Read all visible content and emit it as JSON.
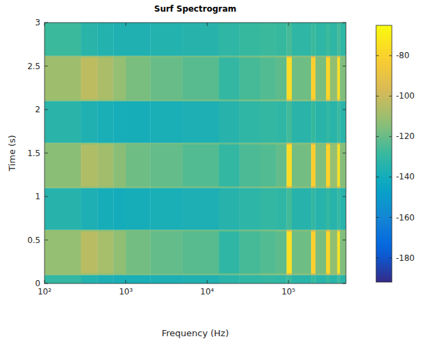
{
  "chart_data": {
    "type": "heatmap",
    "title": "Surf Spectrogram",
    "x_label": "Frequency (Hz)",
    "y_label": "Time (s)",
    "log": "x",
    "xlim": [
      100,
      510000
    ],
    "xticks": [
      {
        "value": 100,
        "label": "10²"
      },
      {
        "value": 1000,
        "label": "10³"
      },
      {
        "value": 10000,
        "label": "10⁴"
      },
      {
        "value": 100000,
        "label": "10⁵"
      }
    ],
    "ylim": [
      0,
      3
    ],
    "yticks": [
      0,
      0.5,
      1,
      1.5,
      2,
      2.5,
      3
    ],
    "x_edges": [
      100,
      280,
      450,
      700,
      1000,
      2000,
      5000,
      14000,
      25000,
      45000,
      70000,
      95000,
      110000,
      190000,
      215000,
      290000,
      325000,
      380000,
      400000,
      430000,
      510000
    ],
    "y_edges": [
      0,
      0.1,
      0.12,
      0.6,
      0.62,
      1.1,
      1.12,
      1.6,
      1.62,
      2.1,
      2.12,
      2.6,
      2.62,
      3
    ],
    "cells": [
      [
        -130,
        -135,
        -137,
        -138,
        -138,
        -137,
        -136,
        -133,
        -131,
        -130,
        -131,
        -128,
        -133,
        -129,
        -133,
        -129,
        -133,
        -133,
        -128,
        -133
      ],
      [
        -112,
        -110,
        -112,
        -114,
        -116,
        -118,
        -118,
        -120,
        -118,
        -116,
        -115,
        -95,
        -114,
        -98,
        -114,
        -96,
        -112,
        -112,
        -94,
        -114
      ],
      [
        -112,
        -104,
        -108,
        -113,
        -118,
        -121,
        -123,
        -131,
        -126,
        -124,
        -122,
        -75,
        -119,
        -80,
        -117,
        -78,
        -113,
        -111,
        -73,
        -116
      ],
      [
        -113,
        -111,
        -113,
        -115,
        -117,
        -118,
        -119,
        -121,
        -118,
        -117,
        -116,
        -96,
        -115,
        -99,
        -115,
        -97,
        -113,
        -113,
        -95,
        -115
      ],
      [
        -134,
        -137,
        -139,
        -140,
        -139,
        -138,
        -137,
        -134,
        -132,
        -130,
        -131,
        -127,
        -134,
        -130,
        -134,
        -130,
        -134,
        -134,
        -129,
        -134
      ],
      [
        -112,
        -110,
        -112,
        -114,
        -116,
        -118,
        -118,
        -120,
        -118,
        -116,
        -115,
        -95,
        -114,
        -98,
        -114,
        -96,
        -112,
        -112,
        -94,
        -114
      ],
      [
        -114,
        -106,
        -109,
        -114,
        -119,
        -121,
        -124,
        -130,
        -125,
        -124,
        -121,
        -76,
        -118,
        -81,
        -116,
        -79,
        -112,
        -110,
        -74,
        -115
      ],
      [
        -113,
        -111,
        -113,
        -115,
        -117,
        -118,
        -119,
        -121,
        -118,
        -117,
        -116,
        -96,
        -115,
        -99,
        -115,
        -97,
        -113,
        -113,
        -95,
        -115
      ],
      [
        -133,
        -136,
        -138,
        -139,
        -139,
        -138,
        -137,
        -134,
        -131,
        -130,
        -131,
        -127,
        -133,
        -129,
        -133,
        -130,
        -133,
        -133,
        -128,
        -133
      ],
      [
        -112,
        -110,
        -112,
        -114,
        -116,
        -118,
        -118,
        -120,
        -118,
        -116,
        -115,
        -95,
        -114,
        -98,
        -114,
        -96,
        -112,
        -112,
        -94,
        -114
      ],
      [
        -110,
        -103,
        -107,
        -112,
        -117,
        -120,
        -123,
        -130,
        -126,
        -124,
        -122,
        -76,
        -119,
        -80,
        -117,
        -78,
        -113,
        -111,
        -74,
        -116
      ],
      [
        -111,
        -109,
        -111,
        -113,
        -115,
        -117,
        -118,
        -120,
        -117,
        -116,
        -115,
        -94,
        -114,
        -97,
        -114,
        -95,
        -112,
        -112,
        -93,
        -114
      ],
      [
        -128,
        -133,
        -135,
        -136,
        -136,
        -135,
        -134,
        -131,
        -129,
        -128,
        -129,
        -126,
        -131,
        -128,
        -131,
        -128,
        -131,
        -131,
        -126,
        -131
      ]
    ],
    "colorbar_range": [
      -192,
      -65
    ],
    "colorbar_ticks": [
      -180,
      -160,
      -140,
      -120,
      -100,
      -80
    ]
  }
}
